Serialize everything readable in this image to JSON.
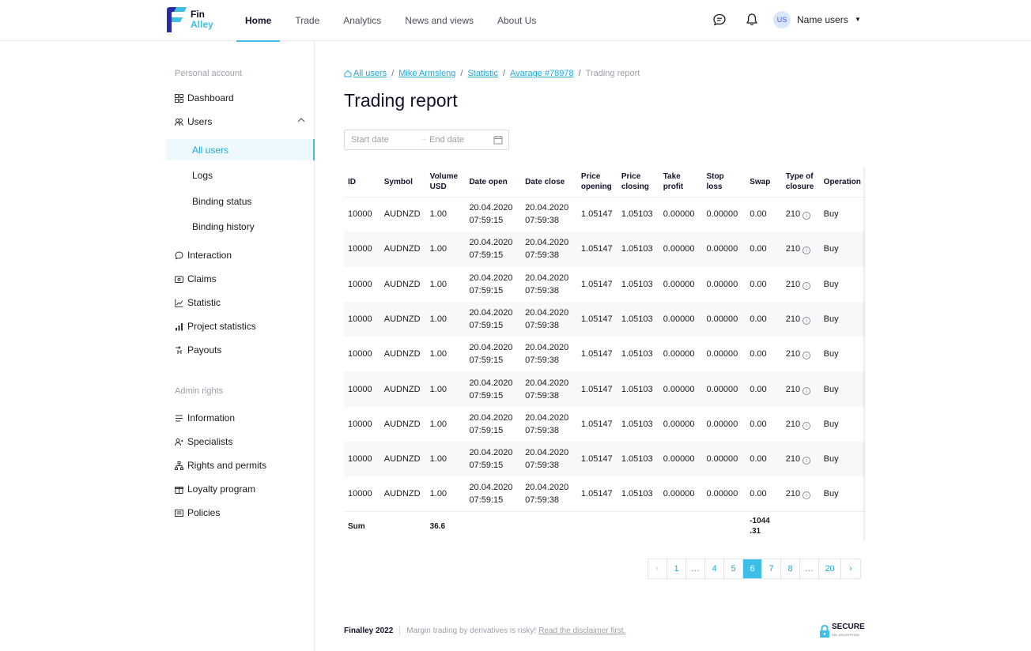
{
  "header": {
    "logo": {
      "line1": "Fin",
      "line2": "Alley"
    },
    "nav": [
      "Home",
      "Trade",
      "Analytics",
      "News and views",
      "About Us"
    ],
    "active_nav": "Home",
    "avatar_initials": "US",
    "user_name": "Name users"
  },
  "sidebar": {
    "section1": "Personal account",
    "items1": [
      {
        "label": "Dashboard",
        "icon": "dashboard-icon"
      },
      {
        "label": "Users",
        "icon": "users-icon"
      }
    ],
    "users_sub": [
      "All users",
      "Logs",
      "Binding status",
      "Binding history"
    ],
    "active_sub": "All users",
    "items2": [
      {
        "label": "Interaction",
        "icon": "chat-icon"
      },
      {
        "label": "Claims",
        "icon": "claims-icon"
      },
      {
        "label": "Statistic",
        "icon": "line-chart-icon"
      },
      {
        "label": "Project statistics",
        "icon": "bar-chart-icon"
      },
      {
        "label": "Payouts",
        "icon": "payouts-icon"
      }
    ],
    "section2": "Admin rights",
    "items3": [
      {
        "label": "Information",
        "icon": "list-icon"
      },
      {
        "label": "Specialists",
        "icon": "specialist-icon"
      },
      {
        "label": "Rights and permits",
        "icon": "hierarchy-icon"
      },
      {
        "label": "Loyalty program",
        "icon": "gift-icon"
      },
      {
        "label": "Policies",
        "icon": "policy-icon"
      }
    ]
  },
  "breadcrumb": {
    "links": [
      "All users",
      "Mike Armsleng",
      "Statistic",
      "Avarage #78978"
    ],
    "current": "Trading report"
  },
  "page_title": "Trading report",
  "date_filter": {
    "start_placeholder": "Start date",
    "end_placeholder": "End date"
  },
  "table": {
    "headers": [
      "ID",
      "Symbol",
      "Volume USD",
      "Date open",
      "Date close",
      "Price opening",
      "Price closing",
      "Take profit",
      "Stop loss",
      "Swap",
      "Type of closure",
      "Operation"
    ],
    "rows": [
      {
        "id": "10000",
        "symbol": "AUDNZD",
        "volume": "1.00",
        "date_open_d": "20.04.2020",
        "date_open_t": "07:59:15",
        "date_close_d": "20.04.2020",
        "date_close_t": "07:59:38",
        "price_open": "1.05147",
        "price_close": "1.05103",
        "take_profit": "0.00000",
        "stop_loss": "0.00000",
        "swap": "0.00",
        "closure": "210",
        "operation": "Buy"
      },
      {
        "id": "10000",
        "symbol": "AUDNZD",
        "volume": "1.00",
        "date_open_d": "20.04.2020",
        "date_open_t": "07:59:15",
        "date_close_d": "20.04.2020",
        "date_close_t": "07:59:38",
        "price_open": "1.05147",
        "price_close": "1.05103",
        "take_profit": "0.00000",
        "stop_loss": "0.00000",
        "swap": "0.00",
        "closure": "210",
        "operation": "Buy"
      },
      {
        "id": "10000",
        "symbol": "AUDNZD",
        "volume": "1.00",
        "date_open_d": "20.04.2020",
        "date_open_t": "07:59:15",
        "date_close_d": "20.04.2020",
        "date_close_t": "07:59:38",
        "price_open": "1.05147",
        "price_close": "1.05103",
        "take_profit": "0.00000",
        "stop_loss": "0.00000",
        "swap": "0.00",
        "closure": "210",
        "operation": "Buy"
      },
      {
        "id": "10000",
        "symbol": "AUDNZD",
        "volume": "1.00",
        "date_open_d": "20.04.2020",
        "date_open_t": "07:59:15",
        "date_close_d": "20.04.2020",
        "date_close_t": "07:59:38",
        "price_open": "1.05147",
        "price_close": "1.05103",
        "take_profit": "0.00000",
        "stop_loss": "0.00000",
        "swap": "0.00",
        "closure": "210",
        "operation": "Buy"
      },
      {
        "id": "10000",
        "symbol": "AUDNZD",
        "volume": "1.00",
        "date_open_d": "20.04.2020",
        "date_open_t": "07:59:15",
        "date_close_d": "20.04.2020",
        "date_close_t": "07:59:38",
        "price_open": "1.05147",
        "price_close": "1.05103",
        "take_profit": "0.00000",
        "stop_loss": "0.00000",
        "swap": "0.00",
        "closure": "210",
        "operation": "Buy"
      },
      {
        "id": "10000",
        "symbol": "AUDNZD",
        "volume": "1.00",
        "date_open_d": "20.04.2020",
        "date_open_t": "07:59:15",
        "date_close_d": "20.04.2020",
        "date_close_t": "07:59:38",
        "price_open": "1.05147",
        "price_close": "1.05103",
        "take_profit": "0.00000",
        "stop_loss": "0.00000",
        "swap": "0.00",
        "closure": "210",
        "operation": "Buy"
      },
      {
        "id": "10000",
        "symbol": "AUDNZD",
        "volume": "1.00",
        "date_open_d": "20.04.2020",
        "date_open_t": "07:59:15",
        "date_close_d": "20.04.2020",
        "date_close_t": "07:59:38",
        "price_open": "1.05147",
        "price_close": "1.05103",
        "take_profit": "0.00000",
        "stop_loss": "0.00000",
        "swap": "0.00",
        "closure": "210",
        "operation": "Buy"
      },
      {
        "id": "10000",
        "symbol": "AUDNZD",
        "volume": "1.00",
        "date_open_d": "20.04.2020",
        "date_open_t": "07:59:15",
        "date_close_d": "20.04.2020",
        "date_close_t": "07:59:38",
        "price_open": "1.05147",
        "price_close": "1.05103",
        "take_profit": "0.00000",
        "stop_loss": "0.00000",
        "swap": "0.00",
        "closure": "210",
        "operation": "Buy"
      },
      {
        "id": "10000",
        "symbol": "AUDNZD",
        "volume": "1.00",
        "date_open_d": "20.04.2020",
        "date_open_t": "07:59:15",
        "date_close_d": "20.04.2020",
        "date_close_t": "07:59:38",
        "price_open": "1.05147",
        "price_close": "1.05103",
        "take_profit": "0.00000",
        "stop_loss": "0.00000",
        "swap": "0.00",
        "closure": "210",
        "operation": "Buy"
      }
    ],
    "sum": {
      "label": "Sum",
      "volume": "36.6",
      "swap_line1": "-1044",
      "swap_line2": ".31"
    }
  },
  "pagination": {
    "pages": [
      "1",
      "…",
      "4",
      "5",
      "6",
      "7",
      "8",
      "…",
      "20"
    ],
    "current": "6"
  },
  "footer": {
    "brand": "Finalley 2022",
    "warning": "Margin trading by derivatives is risky!",
    "link": "Read the disclaimer first.",
    "secure_label": "SECURE",
    "secure_sub": "SSL ENCRYPTION"
  },
  "colors": {
    "accent": "#3dbfe8",
    "text": "#12122e",
    "muted": "#9aa0ab"
  }
}
